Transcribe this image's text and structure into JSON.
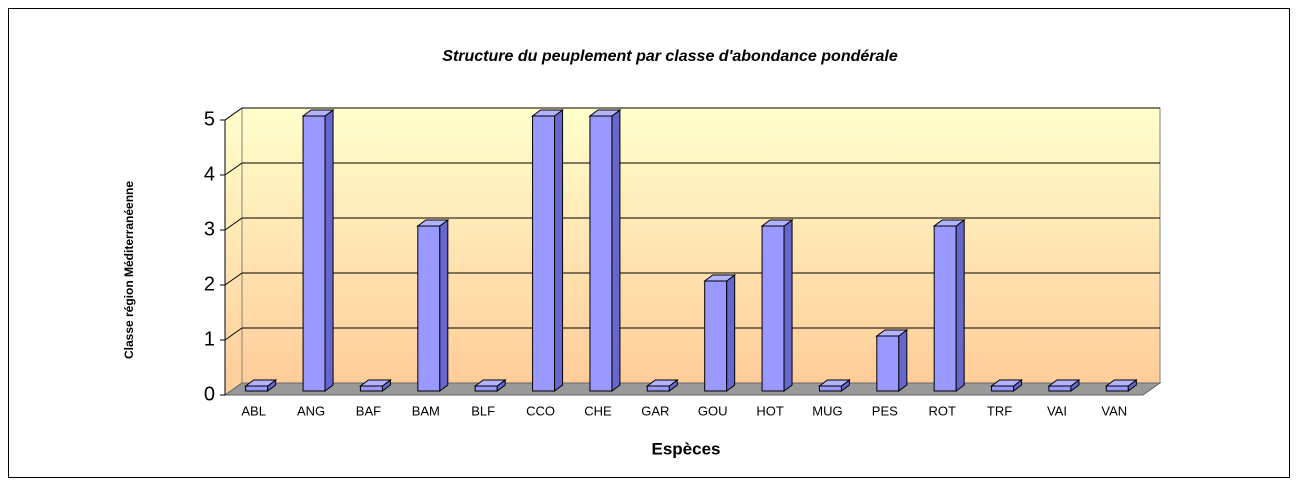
{
  "chart_data": {
    "type": "bar3d",
    "title": "Structure du peuplement par classe d'abondance pondérale",
    "x_label": "Espèces",
    "y_label": "Classe région Méditerranéenne",
    "categories": [
      "ABL",
      "ANG",
      "BAF",
      "BAM",
      "BLF",
      "CCO",
      "CHE",
      "GAR",
      "GOU",
      "HOT",
      "MUG",
      "PES",
      "ROT",
      "TRF",
      "VAI",
      "VAN"
    ],
    "values": [
      0,
      5,
      0,
      3,
      0,
      5,
      5,
      0,
      2,
      3,
      0,
      1,
      3,
      0,
      0,
      0
    ],
    "color": "#9999ff",
    "ylim": [
      0,
      5
    ],
    "yticks": [
      0,
      1,
      2,
      3,
      4,
      5
    ],
    "grid": true
  }
}
